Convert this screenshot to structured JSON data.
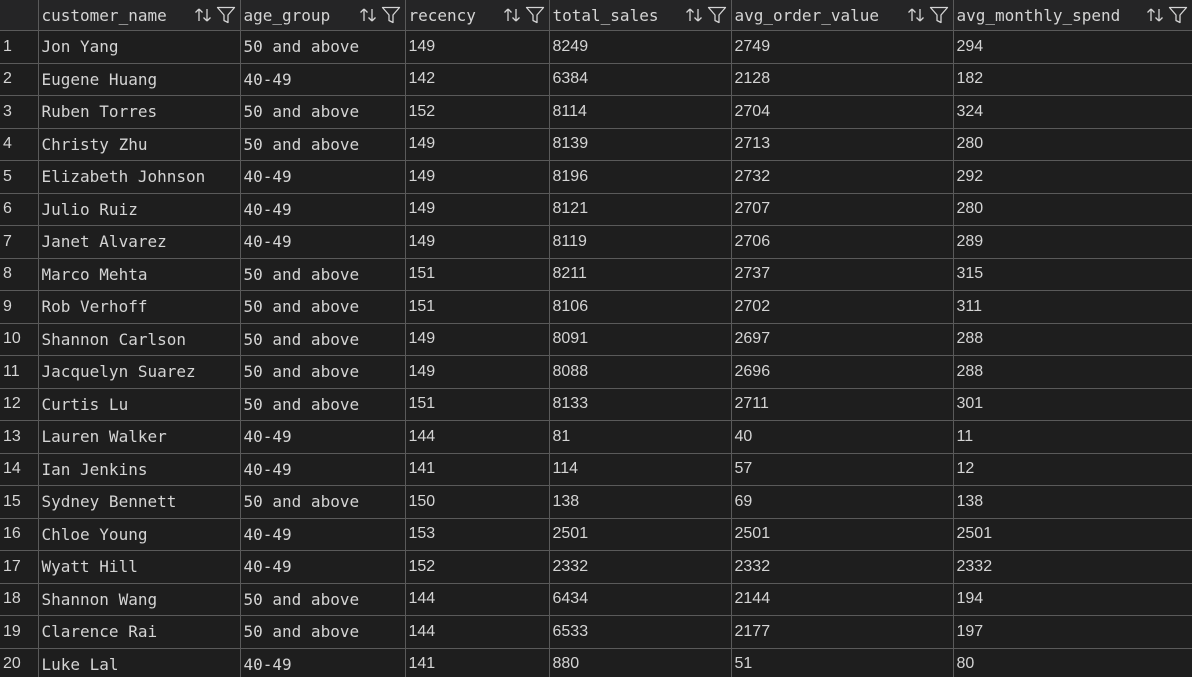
{
  "columns": [
    {
      "key": "customer_name",
      "label": "customer_name"
    },
    {
      "key": "age_group",
      "label": "age_group"
    },
    {
      "key": "recency",
      "label": "recency"
    },
    {
      "key": "total_sales",
      "label": "total_sales"
    },
    {
      "key": "avg_order_value",
      "label": "avg_order_value"
    },
    {
      "key": "avg_monthly_spend",
      "label": "avg_monthly_spend"
    }
  ],
  "rows": [
    {
      "n": "1",
      "customer_name": "Jon Yang",
      "age_group": "50 and above",
      "recency": "149",
      "total_sales": "8249",
      "avg_order_value": "2749",
      "avg_monthly_spend": "294"
    },
    {
      "n": "2",
      "customer_name": "Eugene Huang",
      "age_group": "40-49",
      "recency": "142",
      "total_sales": "6384",
      "avg_order_value": "2128",
      "avg_monthly_spend": "182"
    },
    {
      "n": "3",
      "customer_name": "Ruben Torres",
      "age_group": "50 and above",
      "recency": "152",
      "total_sales": "8114",
      "avg_order_value": "2704",
      "avg_monthly_spend": "324"
    },
    {
      "n": "4",
      "customer_name": "Christy Zhu",
      "age_group": "50 and above",
      "recency": "149",
      "total_sales": "8139",
      "avg_order_value": "2713",
      "avg_monthly_spend": "280"
    },
    {
      "n": "5",
      "customer_name": "Elizabeth Johnson",
      "age_group": "40-49",
      "recency": "149",
      "total_sales": "8196",
      "avg_order_value": "2732",
      "avg_monthly_spend": "292"
    },
    {
      "n": "6",
      "customer_name": "Julio Ruiz",
      "age_group": "40-49",
      "recency": "149",
      "total_sales": "8121",
      "avg_order_value": "2707",
      "avg_monthly_spend": "280"
    },
    {
      "n": "7",
      "customer_name": "Janet Alvarez",
      "age_group": "40-49",
      "recency": "149",
      "total_sales": "8119",
      "avg_order_value": "2706",
      "avg_monthly_spend": "289"
    },
    {
      "n": "8",
      "customer_name": "Marco Mehta",
      "age_group": "50 and above",
      "recency": "151",
      "total_sales": "8211",
      "avg_order_value": "2737",
      "avg_monthly_spend": "315"
    },
    {
      "n": "9",
      "customer_name": "Rob Verhoff",
      "age_group": "50 and above",
      "recency": "151",
      "total_sales": "8106",
      "avg_order_value": "2702",
      "avg_monthly_spend": "311"
    },
    {
      "n": "10",
      "customer_name": "Shannon Carlson",
      "age_group": "50 and above",
      "recency": "149",
      "total_sales": "8091",
      "avg_order_value": "2697",
      "avg_monthly_spend": "288"
    },
    {
      "n": "11",
      "customer_name": "Jacquelyn Suarez",
      "age_group": "50 and above",
      "recency": "149",
      "total_sales": "8088",
      "avg_order_value": "2696",
      "avg_monthly_spend": "288"
    },
    {
      "n": "12",
      "customer_name": "Curtis Lu",
      "age_group": "50 and above",
      "recency": "151",
      "total_sales": "8133",
      "avg_order_value": "2711",
      "avg_monthly_spend": "301"
    },
    {
      "n": "13",
      "customer_name": "Lauren Walker",
      "age_group": "40-49",
      "recency": "144",
      "total_sales": "81",
      "avg_order_value": "40",
      "avg_monthly_spend": "11"
    },
    {
      "n": "14",
      "customer_name": "Ian Jenkins",
      "age_group": "40-49",
      "recency": "141",
      "total_sales": "114",
      "avg_order_value": "57",
      "avg_monthly_spend": "12"
    },
    {
      "n": "15",
      "customer_name": "Sydney Bennett",
      "age_group": "50 and above",
      "recency": "150",
      "total_sales": "138",
      "avg_order_value": "69",
      "avg_monthly_spend": "138"
    },
    {
      "n": "16",
      "customer_name": "Chloe Young",
      "age_group": "40-49",
      "recency": "153",
      "total_sales": "2501",
      "avg_order_value": "2501",
      "avg_monthly_spend": "2501"
    },
    {
      "n": "17",
      "customer_name": "Wyatt Hill",
      "age_group": "40-49",
      "recency": "152",
      "total_sales": "2332",
      "avg_order_value": "2332",
      "avg_monthly_spend": "2332"
    },
    {
      "n": "18",
      "customer_name": "Shannon Wang",
      "age_group": "50 and above",
      "recency": "144",
      "total_sales": "6434",
      "avg_order_value": "2144",
      "avg_monthly_spend": "194"
    },
    {
      "n": "19",
      "customer_name": "Clarence Rai",
      "age_group": "50 and above",
      "recency": "144",
      "total_sales": "6533",
      "avg_order_value": "2177",
      "avg_monthly_spend": "197"
    },
    {
      "n": "20",
      "customer_name": "Luke Lal",
      "age_group": "40-49",
      "recency": "141",
      "total_sales": "880",
      "avg_order_value": "51",
      "avg_monthly_spend": "80"
    }
  ],
  "icons": {
    "sort": "sort-icon",
    "filter": "filter-icon"
  },
  "colors": {
    "background": "#1e1e1e",
    "header_background": "#252526",
    "text": "#d4d4d4",
    "grid_line": "#5a5a5a"
  }
}
